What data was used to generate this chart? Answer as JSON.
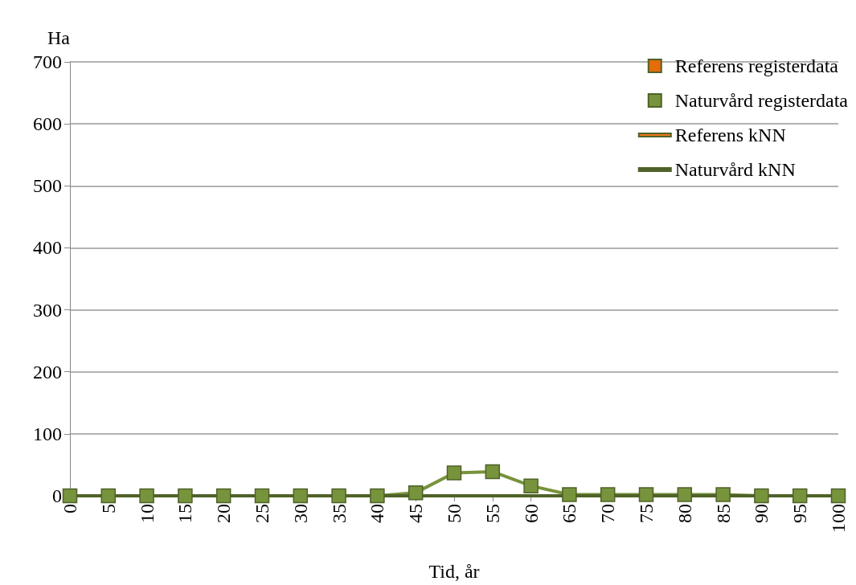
{
  "chart_data": {
    "type": "line",
    "xlabel": "Tid, år",
    "ylabel": "Ha",
    "categories": [
      "0",
      "5",
      "10",
      "15",
      "20",
      "25",
      "30",
      "35",
      "40",
      "45",
      "50",
      "55",
      "60",
      "65",
      "70",
      "75",
      "80",
      "85",
      "90",
      "95",
      "100"
    ],
    "series": [
      {
        "name": "Referens registerdata",
        "color": "#e46c0a",
        "marker": "square",
        "values": [
          null,
          null,
          null,
          null,
          null,
          null,
          null,
          null,
          null,
          null,
          null,
          null,
          null,
          null,
          null,
          null,
          null,
          null,
          null,
          null,
          null
        ]
      },
      {
        "name": "Naturvård registerdata",
        "color": "#77933c",
        "marker": "square",
        "values": [
          0,
          0,
          0,
          0,
          0,
          0,
          0,
          0,
          0,
          5,
          37,
          39,
          16,
          2,
          2,
          2,
          2,
          2,
          0,
          0,
          0
        ]
      },
      {
        "name": "Referens kNN",
        "color": "#f07818",
        "marker": "none",
        "values": [
          null,
          null,
          null,
          null,
          null,
          null,
          null,
          null,
          null,
          null,
          null,
          null,
          null,
          null,
          null,
          null,
          null,
          null,
          null,
          null,
          null
        ]
      },
      {
        "name": "Naturvård kNN",
        "color": "#4f6228",
        "marker": "none",
        "values": [
          0,
          0,
          0,
          0,
          0,
          0,
          0,
          0,
          0,
          0,
          0,
          0,
          0,
          0,
          0,
          0,
          0,
          0,
          0,
          0,
          0
        ]
      }
    ],
    "ylim": [
      0,
      700
    ],
    "yticks": [
      0,
      100,
      200,
      300,
      400,
      500,
      600,
      700
    ],
    "grid": "y",
    "legend": "top right",
    "line_style": "solid"
  }
}
